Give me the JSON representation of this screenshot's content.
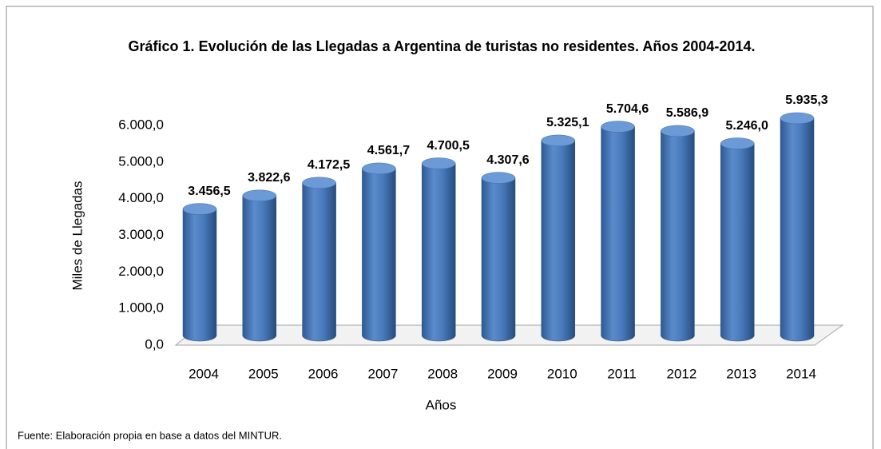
{
  "chart_data": {
    "type": "bar3d",
    "title": "Gráfico 1. Evolución de las Llegadas a Argentina de turistas no residentes. Años 2004-2014.",
    "y_label": "Miles de Llegadas",
    "x_label": "Años",
    "source": "Fuente: Elaboración propia en base a datos del MINTUR.",
    "categories": [
      "2004",
      "2005",
      "2006",
      "2007",
      "2008",
      "2009",
      "2010",
      "2011",
      "2012",
      "2013",
      "2014"
    ],
    "values": [
      3456.5,
      3822.6,
      4172.5,
      4561.7,
      4700.5,
      4307.6,
      5325.1,
      5704.6,
      5586.9,
      5246.0,
      5935.3
    ],
    "value_labels": [
      "3.456,5",
      "3.822,6",
      "4.172,5",
      "4.561,7",
      "4.700,5",
      "4.307,6",
      "5.325,1",
      "5.704,6",
      "5.586,9",
      "5.246,0",
      "5.935,3"
    ],
    "color": "#4f81bd",
    "ylim": [
      0,
      6000
    ],
    "yticks": [
      {
        "value": 0,
        "label": "0,0"
      },
      {
        "value": 1000,
        "label": "1.000,0"
      },
      {
        "value": 2000,
        "label": "2.000,0"
      },
      {
        "value": 3000,
        "label": "3.000,0"
      },
      {
        "value": 4000,
        "label": "4.000,0"
      },
      {
        "value": 5000,
        "label": "5.000,0"
      },
      {
        "value": 6000,
        "label": "6.000,0"
      }
    ],
    "grid": false
  }
}
